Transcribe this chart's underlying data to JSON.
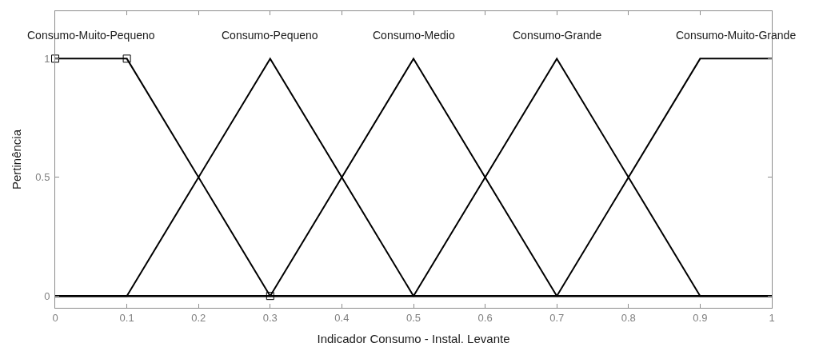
{
  "chart_data": {
    "type": "line",
    "xlabel": "Indicador Consumo - Instal. Levante",
    "ylabel": "Pertinência",
    "xlim": [
      0,
      1
    ],
    "ylim": [
      -0.05,
      1.2
    ],
    "xticks": [
      0,
      0.1,
      0.2,
      0.3,
      0.4,
      0.5,
      0.6,
      0.7,
      0.8,
      0.9,
      1
    ],
    "yticks": [
      0,
      0.5,
      1
    ],
    "marker": "none",
    "line_style": "solid",
    "series": [
      {
        "name": "Consumo-Muito-Pequeno",
        "color": "#000000",
        "x": [
          0,
          0.1,
          0.3,
          1
        ],
        "values": [
          1,
          1,
          0,
          0
        ]
      },
      {
        "name": "Consumo-Pequeno",
        "color": "#000000",
        "x": [
          0,
          0.1,
          0.3,
          0.5,
          1
        ],
        "values": [
          0,
          0,
          1,
          0,
          0
        ]
      },
      {
        "name": "Consumo-Medio",
        "color": "#000000",
        "x": [
          0,
          0.3,
          0.5,
          0.7,
          1
        ],
        "values": [
          0,
          0,
          1,
          0,
          0
        ]
      },
      {
        "name": "Consumo-Grande",
        "color": "#000000",
        "x": [
          0,
          0.5,
          0.7,
          0.9,
          1
        ],
        "values": [
          0,
          0,
          1,
          0,
          0
        ]
      },
      {
        "name": "Consumo-Muito-Grande",
        "color": "#000000",
        "x": [
          0,
          0.7,
          0.9,
          1
        ],
        "values": [
          0,
          0,
          1,
          1
        ]
      },
      {
        "type": "scatter",
        "marker": "square",
        "color": "#000000",
        "x": [
          0,
          0.1,
          0.3
        ],
        "values": [
          1,
          1,
          0
        ]
      }
    ]
  }
}
